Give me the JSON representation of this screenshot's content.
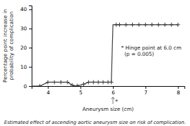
{
  "chart_data": {
    "type": "line",
    "xlabel": "Aneurysm size (cm)",
    "ylabel": "Percentage point increase in\nprobability of complication",
    "caption": "Estimated effect of ascending aortic aneurysm size on risk of complication.",
    "series": [
      {
        "type": "line",
        "color": "#3a3a3a",
        "x": [
          3.5,
          3.75,
          4.0,
          4.2,
          4.4,
          4.6,
          4.65,
          4.75,
          4.85,
          4.9,
          5.0,
          5.1,
          5.25,
          5.4,
          5.55,
          5.7,
          5.85,
          5.95,
          6.0,
          6.1,
          6.2,
          6.4,
          6.6,
          6.8,
          7.0,
          7.2,
          7.4,
          7.6,
          7.8,
          8.0
        ],
        "values": [
          0,
          0,
          2,
          2,
          2,
          2,
          1.5,
          0.5,
          0.0,
          0.2,
          0.5,
          1.0,
          2.0,
          2.0,
          2.0,
          2.0,
          2.0,
          2.0,
          32,
          32,
          32,
          32,
          32,
          32,
          32,
          32,
          32,
          32,
          32,
          32
        ]
      },
      {
        "type": "scatter",
        "marker": "plus",
        "color": "#3a3a3a",
        "x": [
          3.75,
          4.0,
          4.2,
          4.4,
          4.6,
          4.75,
          4.9,
          5.1,
          5.25,
          5.4,
          5.55,
          5.7,
          5.85,
          5.95,
          6.1,
          6.2,
          6.4,
          6.6,
          6.8,
          7.0,
          7.2,
          7.4,
          7.6,
          7.8,
          8.0
        ],
        "values": [
          0,
          2,
          2,
          2,
          2,
          0.5,
          0.2,
          1.0,
          2.0,
          2.0,
          2.0,
          2.0,
          2.0,
          2.0,
          32,
          32,
          32,
          32,
          32,
          32,
          32,
          32,
          32,
          32,
          32
        ]
      }
    ],
    "annotations": [
      {
        "text": "* Hinge point at 6.0 cm\n  (p = 0.005)",
        "x": 6.25,
        "y": 18
      },
      {
        "text": "*",
        "x": 6.0
      }
    ],
    "xlim": [
      3.5,
      8.2
    ],
    "ylim": [
      0,
      42
    ],
    "xticks": [
      4,
      5,
      6,
      7,
      8
    ],
    "yticks": [
      0,
      10,
      20,
      30,
      40
    ],
    "grid": false
  }
}
